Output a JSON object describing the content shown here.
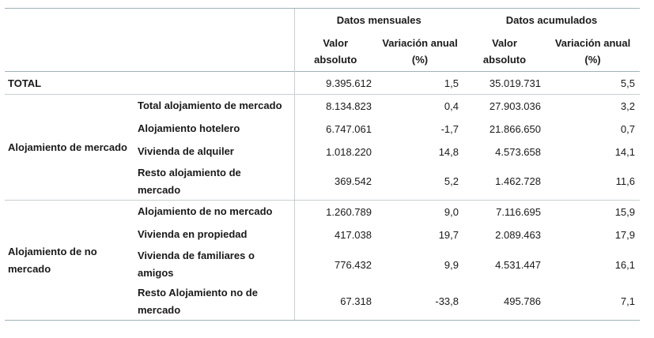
{
  "header": {
    "group_monthly": "Datos mensuales",
    "group_cumulative": "Datos acumulados",
    "col_abs_1": "Valor",
    "col_abs_2": "absoluto",
    "col_var_1": "Variación anual",
    "col_var_2": "(%)"
  },
  "total": {
    "label": "TOTAL",
    "mv": "9.395.612",
    "mp": "1,5",
    "av": "35.019.731",
    "ap": "5,5"
  },
  "groups": {
    "market": {
      "label": "Alojamiento de mercado",
      "rows": [
        {
          "label": "Total alojamiento de mercado",
          "mv": "8.134.823",
          "mp": "0,4",
          "av": "27.903.036",
          "ap": "3,2"
        },
        {
          "label": "Alojamiento hotelero",
          "mv": "6.747.061",
          "mp": "-1,7",
          "av": "21.866.650",
          "ap": "0,7"
        },
        {
          "label": "Vivienda de alquiler",
          "mv": "1.018.220",
          "mp": "14,8",
          "av": "4.573.658",
          "ap": "14,1"
        },
        {
          "label_1": "Resto alojamiento de",
          "label_2": "mercado",
          "mv": "369.542",
          "mp": "5,2",
          "av": "1.462.728",
          "ap": "11,6"
        }
      ]
    },
    "nonmarket": {
      "label_1": "Alojamiento de no",
      "label_2": "mercado",
      "rows": [
        {
          "label": "Alojamiento de no mercado",
          "mv": "1.260.789",
          "mp": "9,0",
          "av": "7.116.695",
          "ap": "15,9"
        },
        {
          "label": "Vivienda en propiedad",
          "mv": "417.038",
          "mp": "19,7",
          "av": "2.089.463",
          "ap": "17,9"
        },
        {
          "label_1": "Vivienda de familiares o",
          "label_2": "amigos",
          "mv": "776.432",
          "mp": "9,9",
          "av": "4.531.447",
          "ap": "16,1"
        },
        {
          "label_1": "Resto Alojamiento no de",
          "label_2": "mercado",
          "mv": "67.318",
          "mp": "-33,8",
          "av": "495.786",
          "ap": "7,1"
        }
      ]
    }
  }
}
